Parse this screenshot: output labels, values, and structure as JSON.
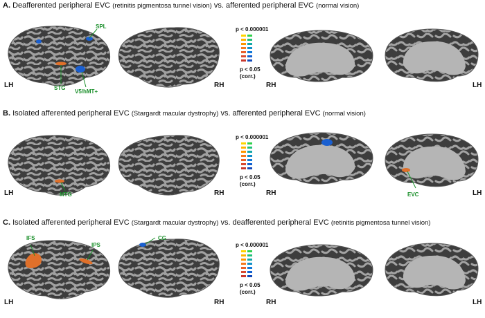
{
  "panels": [
    {
      "letter": "A.",
      "title_main_1": "Deafferented peripheral EVC",
      "title_paren_1": "(retinitis pigmentosa tunnel vision)",
      "title_vs": "vs. afferented peripheral EVC",
      "title_paren_2": "(normal vision)",
      "labels": {
        "lh_lat": "LH",
        "rh_lat": "RH",
        "rh_med": "RH",
        "lh_med": "LH"
      },
      "callouts": [
        "SPL",
        "STG",
        "V5/hMT+"
      ]
    },
    {
      "letter": "B.",
      "title_main_1": "Isolated afferented peripheral EVC",
      "title_paren_1": "(Stargardt macular dystrophy)",
      "title_vs": "vs. afferented peripheral EVC",
      "title_paren_2": "(normal vision)",
      "labels": {
        "lh_lat": "LH",
        "rh_lat": "RH",
        "rh_med": "RH",
        "lh_med": "LH"
      },
      "callouts": [
        "MTG",
        "EVC"
      ]
    },
    {
      "letter": "C.",
      "title_main_1": "Isolated afferented peripheral EVC",
      "title_paren_1": "(Stargardt macular dystrophy)",
      "title_vs": "vs. deafferented peripheral EVC",
      "title_paren_2": "(retinitis pigmentosa tunnel vision)",
      "labels": {
        "lh_lat": "LH",
        "rh_lat": "RH",
        "rh_med": "RH",
        "lh_med": "LH"
      },
      "callouts": [
        "IFS",
        "IPS",
        "CG"
      ]
    }
  ],
  "legend": {
    "p_top": "p < 0.000001",
    "p_bottom": "p < 0.05",
    "corr": "(corr.)",
    "warm_colors": [
      "#ffd400",
      "#ffb400",
      "#ff9600",
      "#f57a20",
      "#e8602c",
      "#d84a30",
      "#c8382e"
    ],
    "cool_colors": [
      "#2fd04a",
      "#1fbf78",
      "#12a8a8",
      "#1090c8",
      "#1078d8",
      "#1060d0",
      "#1048b8"
    ]
  },
  "colors": {
    "callout": "#1a8f2a",
    "sulcus": "#3d3d3d",
    "gyrus": "#9a9a9a",
    "medial_wall": "#b5b5b5",
    "activation_warm": "#e0702a",
    "activation_cool": "#1a5fd0"
  }
}
